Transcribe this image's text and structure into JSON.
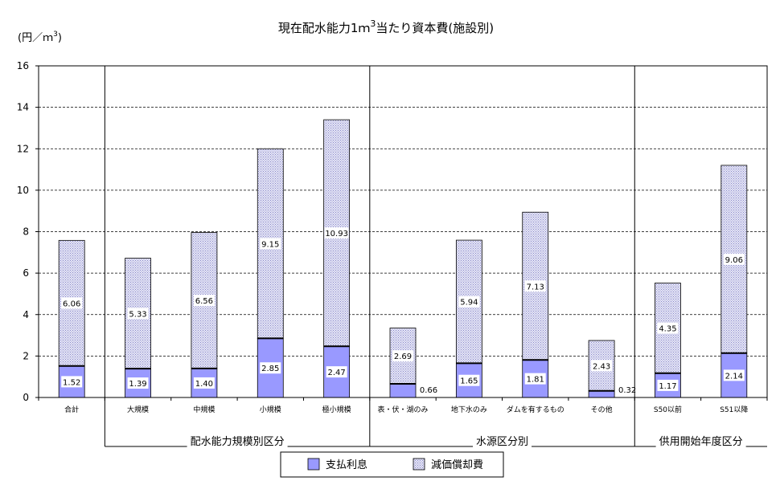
{
  "chart_data": {
    "type": "bar",
    "stacked": true,
    "title": "現在配水能力1ｍ",
    "title_sup": "3",
    "title_tail": "当たり資本費(施設別)",
    "ylabel": "(円／ｍ",
    "ylabel_sup": "3",
    "ylabel_tail": ")",
    "ylim": [
      0,
      16
    ],
    "yticks": [
      0,
      2,
      4,
      6,
      8,
      10,
      12,
      14,
      16
    ],
    "grid": true,
    "legend_position": "bottom",
    "categories": [
      "合計",
      "大規模",
      "中規模",
      "小規模",
      "極小規模",
      "表・伏・湖のみ",
      "地下水のみ",
      "ダムを有するもの",
      "その他",
      "S50以前",
      "S51以降"
    ],
    "groups": [
      {
        "label": "配水能力規模別区分",
        "start": 1,
        "end": 4
      },
      {
        "label": "水源区分別",
        "start": 5,
        "end": 8
      },
      {
        "label": "供用開始年度区分",
        "start": 9,
        "end": 10
      }
    ],
    "series": [
      {
        "name": "支払利息",
        "color": "#9999ff",
        "values": [
          1.52,
          1.39,
          1.4,
          2.85,
          2.47,
          0.66,
          1.65,
          1.81,
          0.32,
          1.17,
          2.14
        ],
        "labels": [
          "1.52",
          "1.39",
          "1.40",
          "2.85",
          "2.47",
          "0.66",
          "1.65",
          "1.81",
          "0.32",
          "1.17",
          "2.14"
        ]
      },
      {
        "name": "減価償却費",
        "color": "#d8d8f2",
        "values": [
          6.06,
          5.33,
          6.56,
          9.15,
          10.93,
          2.69,
          5.94,
          7.13,
          2.43,
          4.35,
          9.06
        ],
        "labels": [
          "6.06",
          "5.33",
          "6.56",
          "9.15",
          "10.93",
          "2.69",
          "5.94",
          "7.13",
          "2.43",
          "4.35",
          "9.06"
        ]
      }
    ],
    "outside_label_categories": [
      5,
      8
    ]
  }
}
